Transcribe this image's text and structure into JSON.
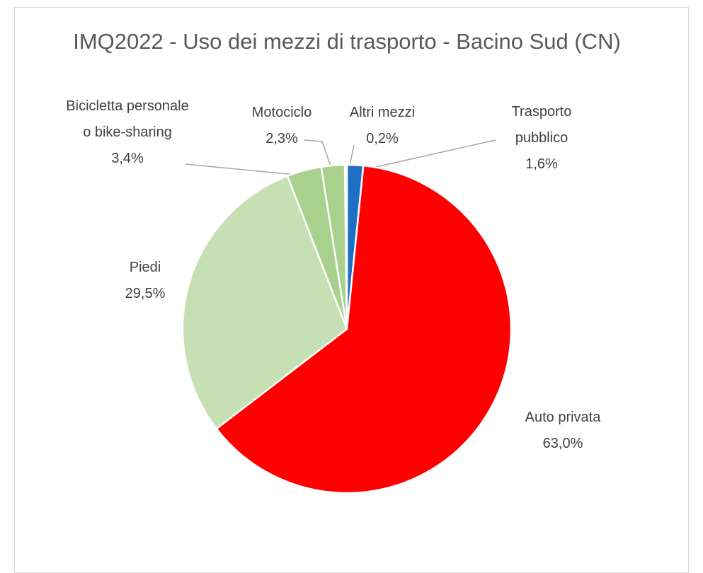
{
  "chart_data": {
    "type": "pie",
    "title": "IMQ2022 - Uso dei mezzi di trasporto - Bacino Sud (CN)",
    "categories": [
      "Trasporto pubblico",
      "Auto privata",
      "Piedi",
      "Bicicletta personale o bike-sharing",
      "Motociclo",
      "Altri mezzi"
    ],
    "values": [
      1.6,
      63.0,
      29.5,
      3.4,
      2.3,
      0.2
    ],
    "value_labels": [
      "1,6%",
      "63,0%",
      "29,5%",
      "3,4%",
      "2,3%",
      "0,2%"
    ],
    "colors": [
      "#1f6fc5",
      "#ff0000",
      "#c6e0b4",
      "#a9d18e",
      "#a9d18e",
      "#e2efda"
    ]
  }
}
